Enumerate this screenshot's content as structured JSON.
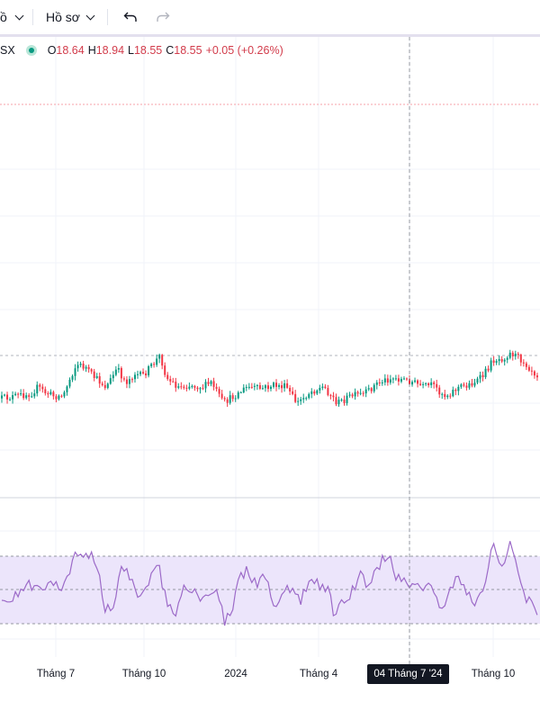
{
  "toolbar": {
    "partial_label": "ồ",
    "profile_label": "Hồ sơ",
    "undo_icon": "undo-icon",
    "redo_icon": "redo-icon"
  },
  "legend": {
    "symbol_fragment": "SX",
    "open_label": "O",
    "open_value": "18.64",
    "high_label": "H",
    "high_value": "18.94",
    "low_label": "L",
    "low_value": "18.55",
    "close_label": "C",
    "close_value": "18.55",
    "change": "+0.05 (+0.26%)"
  },
  "colors": {
    "up": "#089981",
    "down": "#f23645",
    "rsi_line": "#9c6ac8",
    "rsi_band": "#ece5fb",
    "crosshair": "#9598a1"
  },
  "x_axis": {
    "ticks": [
      "Tháng 7",
      "Tháng 10",
      "2024",
      "Tháng 4",
      "Tháng 10"
    ],
    "crosshair_label": "04 Tháng 7 '24"
  },
  "chart_data": {
    "type": "candlestick",
    "xlabel": "",
    "ylabel": "",
    "grid": true,
    "panes": [
      "price",
      "rsi"
    ],
    "rsi_levels": [
      30,
      50,
      70
    ]
  }
}
